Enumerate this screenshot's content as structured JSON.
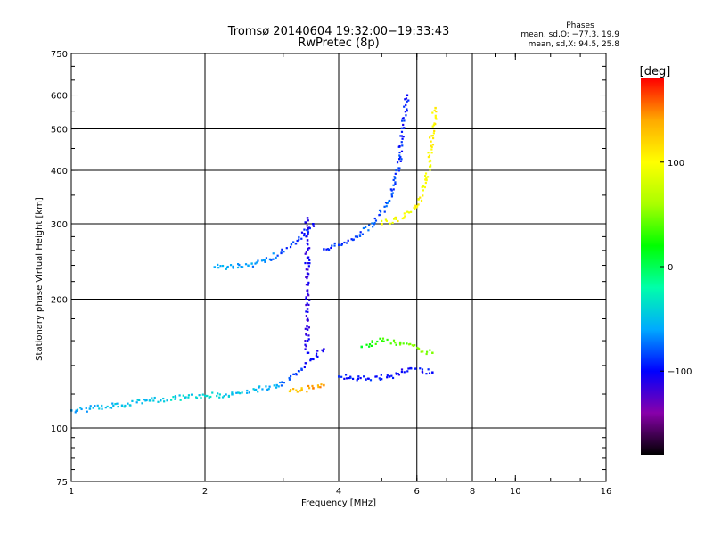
{
  "chart_data": {
    "type": "scatter",
    "title": "Tromsø 20140604 19:32:00−19:33:43",
    "subtitle": "RwPretec (8p)",
    "xlabel": "Frequency [MHz]",
    "ylabel": "Stationary phase Virtual Height [km]",
    "x_scale": "log2",
    "y_scale": "log",
    "xlim": [
      1,
      16
    ],
    "ylim": [
      75,
      750
    ],
    "x_ticks": [
      1,
      2,
      4,
      6,
      8,
      10,
      16
    ],
    "x_tick_labels": [
      "1",
      "2",
      "4",
      "6",
      "8",
      "10",
      "16"
    ],
    "x_gridlines": [
      2,
      4,
      6,
      8
    ],
    "y_ticks": [
      75,
      100,
      200,
      300,
      400,
      500,
      600,
      750
    ],
    "y_tick_labels": [
      "75",
      "100",
      "200",
      "300",
      "400",
      "500",
      "600",
      "750"
    ],
    "y_gridlines": [
      100,
      200,
      300,
      400,
      500,
      600
    ],
    "grid": true,
    "stats": {
      "heading": "Phases",
      "line_o": "mean, sd,O: −77.3, 19.9",
      "line_x": "mean, sd,X:  94.5, 25.8"
    },
    "colorbar": {
      "label": "[deg]",
      "range": [
        -180,
        180
      ],
      "ticks": [
        100,
        0,
        -100
      ],
      "tick_labels": [
        "100",
        "0",
        "−100"
      ],
      "colormap": [
        "#000000",
        "#8800aa",
        "#0000ff",
        "#00aaff",
        "#00ffaa",
        "#00ff00",
        "#aaff00",
        "#ffff00",
        "#ffaa00",
        "#ff0000"
      ]
    },
    "traces": [
      {
        "note": "O-mode lower layer",
        "x": [
          1.0,
          1.1,
          1.3,
          1.5,
          1.8,
          2.0,
          2.3,
          2.6,
          2.9,
          3.1,
          3.3,
          3.5,
          3.7
        ],
        "y": [
          110,
          111,
          113,
          116,
          118,
          119,
          120,
          123,
          126,
          130,
          137,
          145,
          153
        ],
        "phase": [
          -60,
          -55,
          -50,
          -45,
          -40,
          -40,
          -50,
          -55,
          -60,
          -80,
          -90,
          -100,
          -110
        ]
      },
      {
        "note": "cusp",
        "x": [
          3.4,
          3.4,
          3.4,
          3.4,
          3.4,
          3.4,
          3.4,
          3.4
        ],
        "y": [
          150,
          170,
          190,
          210,
          230,
          250,
          275,
          310
        ],
        "phase": [
          -100,
          -110,
          -110,
          -110,
          -110,
          -110,
          -110,
          -110
        ]
      },
      {
        "note": "O-mode upper layer",
        "x": [
          3.7,
          4.0,
          4.4,
          4.8,
          5.2,
          5.5,
          5.7
        ],
        "y": [
          262,
          268,
          280,
          300,
          340,
          430,
          600
        ],
        "phase": [
          -90,
          -90,
          -85,
          -80,
          -80,
          -90,
          -100
        ]
      },
      {
        "note": "X-mode",
        "x": [
          5.0,
          5.6,
          6.0,
          6.3,
          6.4,
          6.6
        ],
        "y": [
          300,
          310,
          330,
          380,
          420,
          560
        ],
        "phase": [
          100,
          100,
          100,
          100,
          100,
          110
        ]
      },
      {
        "note": "low-freq upper branch",
        "x": [
          2.1,
          2.5,
          2.8,
          3.2,
          3.5
        ],
        "y": [
          238,
          240,
          248,
          270,
          300
        ],
        "phase": [
          -60,
          -60,
          -70,
          -90,
          -100
        ]
      },
      {
        "note": "orange E segment",
        "x": [
          3.1,
          3.3,
          3.5,
          3.7
        ],
        "y": [
          122,
          123,
          124,
          126
        ],
        "phase": [
          120,
          130,
          140,
          145
        ]
      },
      {
        "note": "green mid cluster",
        "x": [
          4.5,
          5.0,
          5.5,
          6.5
        ],
        "y": [
          155,
          160,
          158,
          150
        ],
        "phase": [
          20,
          30,
          40,
          50
        ]
      },
      {
        "note": "blue lower right trace",
        "x": [
          4.0,
          4.6,
          5.2,
          5.8,
          6.5
        ],
        "y": [
          132,
          130,
          132,
          138,
          135
        ],
        "phase": [
          -90,
          -95,
          -100,
          -105,
          -100
        ]
      }
    ]
  }
}
